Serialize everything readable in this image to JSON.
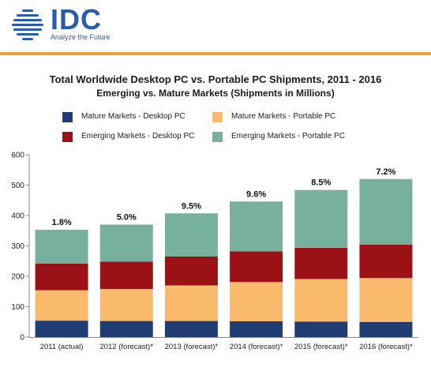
{
  "brand": {
    "name": "IDC",
    "tagline": "Analyze the Future"
  },
  "colors": {
    "brand_blue": "#2a5caa",
    "accent_rule": "#e8a23a",
    "mature_desktop": "#1f3d73",
    "mature_portable": "#f9bb6b",
    "emerging_desktop": "#9b1116",
    "emerging_portable": "#77b09c"
  },
  "chart_data": {
    "type": "bar",
    "stacked": true,
    "title": "Total Worldwide Desktop PC vs. Portable PC Shipments, 2011 - 2016",
    "subtitle": "Emerging vs. Mature Markets (Shipments in Millions)",
    "categories": [
      "2011 (actual)",
      "2012 (forecast)*",
      "2013 (forecast)*",
      "2014 (forecast)*",
      "2015 (forecast)*",
      "2016 (forecast)*"
    ],
    "series": [
      {
        "name": "Mature Markets - Desktop PC",
        "values": [
          54,
          53,
          53,
          52,
          51,
          50
        ]
      },
      {
        "name": "Mature Markets - Portable PC",
        "values": [
          100,
          105,
          117,
          129,
          140,
          144
        ]
      },
      {
        "name": "Emerging Markets - Desktop PC",
        "values": [
          88,
          90,
          95,
          101,
          103,
          110
        ]
      },
      {
        "name": "Emerging Markets - Portable PC",
        "values": [
          111,
          122,
          142,
          164,
          190,
          216
        ]
      }
    ],
    "annotations": [
      "1.8%",
      "5.0%",
      "9.5%",
      "9.6%",
      "8.5%",
      "7.2%"
    ],
    "ylim": [
      0,
      600
    ],
    "yticks": [
      0,
      100,
      200,
      300,
      400,
      500,
      600
    ],
    "xlabel": "",
    "ylabel": "",
    "grid": false,
    "legend": "top"
  }
}
